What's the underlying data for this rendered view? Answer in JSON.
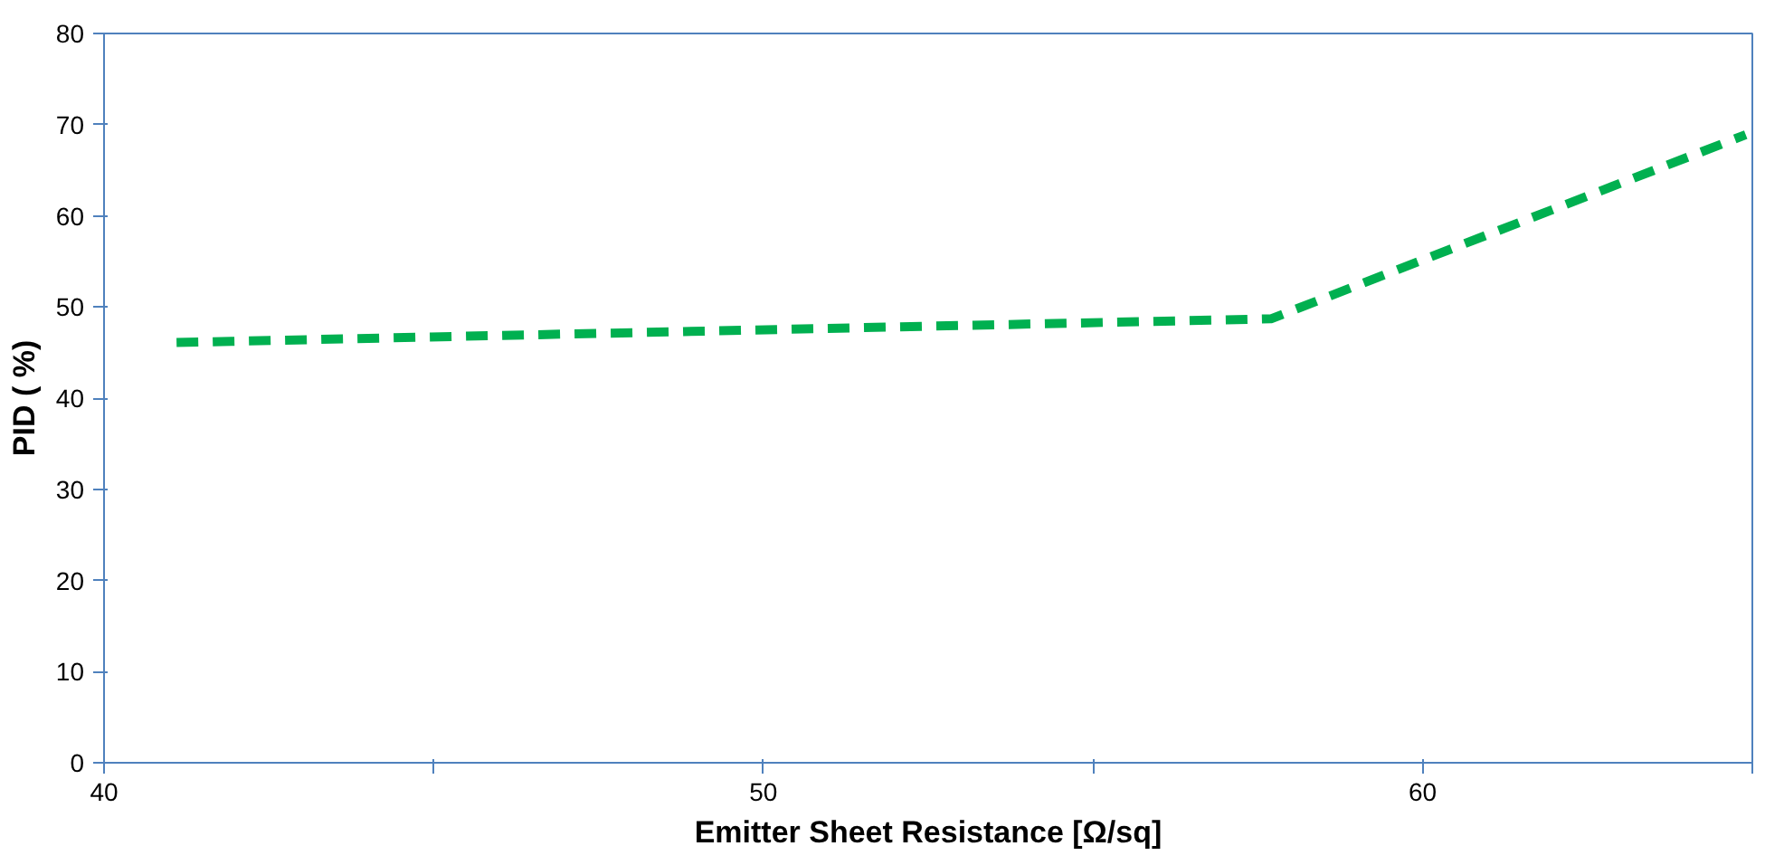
{
  "chart_data": {
    "type": "line",
    "xlabel": "Emitter Sheet Resistance [Ω/sq]",
    "ylabel": "PID ( %)",
    "series": [
      {
        "color": "#00b050",
        "x": [
          41.1,
          57.7,
          64.9
        ],
        "values": [
          46.1,
          48.7,
          68.9
        ]
      }
    ],
    "xlim": [
      40,
      65
    ],
    "xticks": [
      40,
      {
        "value": 45,
        "label": null
      },
      50,
      {
        "value": 55,
        "label": null
      },
      60,
      {
        "value": 65,
        "label": null
      }
    ],
    "ylim": [
      0,
      80
    ],
    "yticks": [
      0,
      10,
      20,
      30,
      40,
      50,
      60,
      70,
      80
    ],
    "grid": false,
    "marker": "none",
    "line_style": "dashed"
  }
}
